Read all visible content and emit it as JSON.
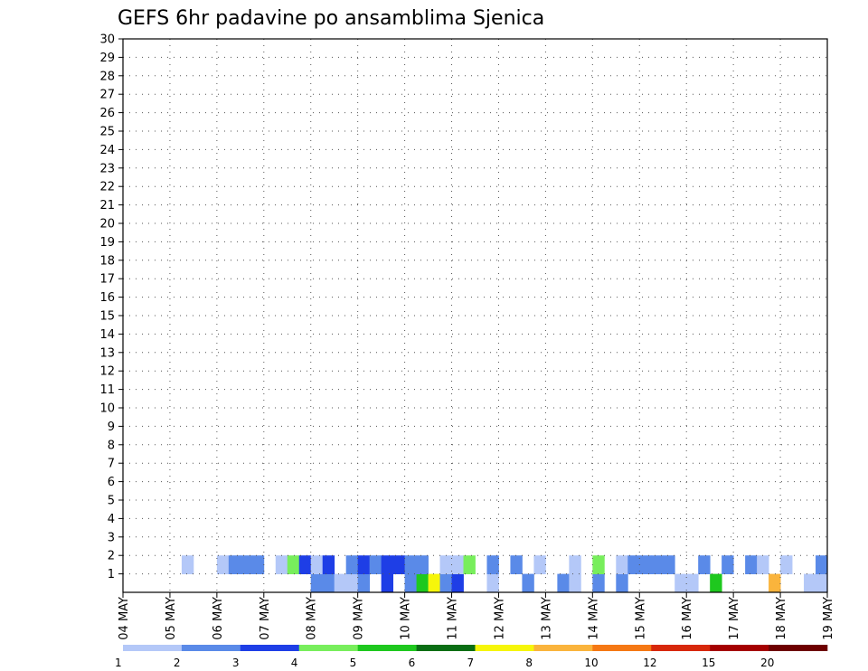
{
  "chart_data": {
    "type": "heatmap",
    "title": "GEFS 6hr padavine po ansamblima Sjenica",
    "xlabel": "",
    "ylabel": "",
    "x_ticks": [
      "04 MAY",
      "05 MAY",
      "06 MAY",
      "07 MAY",
      "08 MAY",
      "09 MAY",
      "10 MAY",
      "11 MAY",
      "12 MAY",
      "13 MAY",
      "14 MAY",
      "15 MAY",
      "16 MAY",
      "17 MAY",
      "18 MAY",
      "19 MAY"
    ],
    "y_ticks": [
      1,
      2,
      3,
      4,
      5,
      6,
      7,
      8,
      9,
      10,
      11,
      12,
      13,
      14,
      15,
      16,
      17,
      18,
      19,
      20,
      21,
      22,
      23,
      24,
      25,
      26,
      27,
      28,
      29,
      30
    ],
    "members": 30,
    "steps_per_day": 4,
    "xlim": [
      "04 MAY",
      "19 MAY"
    ],
    "ylim": [
      0,
      30
    ],
    "grid": true,
    "colorbar": {
      "labels": [
        "1",
        "2",
        "3",
        "4",
        "5",
        "6",
        "7",
        "8",
        "10",
        "12",
        "15",
        "20"
      ],
      "colors": [
        "#b4c8f8",
        "#5a8ae8",
        "#1e3ee6",
        "#78ee5c",
        "#1ec81e",
        "#0a6e14",
        "#f6f60a",
        "#fab43c",
        "#f57814",
        "#d7280a",
        "#a50000",
        "#6e0000"
      ]
    },
    "cells": [
      [
        1,
        16,
        2
      ],
      [
        1,
        17,
        2
      ],
      [
        1,
        18,
        1
      ],
      [
        1,
        19,
        1
      ],
      [
        1,
        20,
        2
      ],
      [
        1,
        22,
        3
      ],
      [
        1,
        24,
        2
      ],
      [
        1,
        25,
        5
      ],
      [
        1,
        26,
        7
      ],
      [
        1,
        27,
        2
      ],
      [
        1,
        28,
        3
      ],
      [
        1,
        31,
        1
      ],
      [
        1,
        34,
        2
      ],
      [
        1,
        37,
        2
      ],
      [
        1,
        38,
        1
      ],
      [
        1,
        40,
        2
      ],
      [
        1,
        42,
        2
      ],
      [
        1,
        47,
        1
      ],
      [
        1,
        48,
        1
      ],
      [
        1,
        50,
        5
      ],
      [
        1,
        55,
        8
      ],
      [
        1,
        58,
        1
      ],
      [
        1,
        59,
        1
      ],
      [
        1,
        60,
        2
      ],
      [
        1,
        62,
        3
      ],
      [
        1,
        64,
        5
      ],
      [
        1,
        65,
        2
      ],
      [
        1,
        67,
        6
      ],
      [
        1,
        68,
        2
      ],
      [
        1,
        69,
        2
      ],
      [
        1,
        70,
        1
      ],
      [
        1,
        72,
        1
      ],
      [
        1,
        73,
        3
      ],
      [
        1,
        74,
        3
      ],
      [
        1,
        75,
        2
      ],
      [
        1,
        77,
        1
      ],
      [
        1,
        78,
        1
      ],
      [
        1,
        80,
        1
      ],
      [
        1,
        81,
        2
      ],
      [
        1,
        83,
        1
      ],
      [
        1,
        86,
        5
      ],
      [
        1,
        87,
        1
      ],
      [
        1,
        88,
        1
      ],
      [
        1,
        89,
        3
      ],
      [
        1,
        90,
        1
      ],
      [
        1,
        92,
        2
      ],
      [
        1,
        93,
        4
      ],
      [
        1,
        94,
        3
      ],
      [
        1,
        97,
        1
      ],
      [
        1,
        98,
        1
      ],
      [
        1,
        101,
        1
      ],
      [
        1,
        104,
        2
      ],
      [
        1,
        107,
        1
      ],
      [
        1,
        109,
        3
      ],
      [
        1,
        111,
        1
      ],
      [
        1,
        112,
        1
      ],
      [
        1,
        114,
        2
      ],
      [
        1,
        115,
        3
      ],
      [
        1,
        119,
        2
      ],
      [
        1,
        120,
        3
      ],
      [
        1,
        122,
        2
      ],
      [
        1,
        123,
        2
      ],
      [
        1,
        125,
        3
      ],
      [
        1,
        126,
        1
      ],
      [
        1,
        127,
        6
      ],
      [
        1,
        129,
        2
      ],
      [
        1,
        130,
        2
      ],
      [
        1,
        134,
        1
      ],
      [
        1,
        136,
        2
      ],
      [
        1,
        138,
        2
      ],
      [
        1,
        142,
        2
      ],
      [
        1,
        144,
        3
      ],
      [
        1,
        147,
        3
      ],
      [
        1,
        148,
        2
      ],
      [
        1,
        149,
        2
      ],
      [
        1,
        150,
        3
      ],
      [
        1,
        151,
        2
      ],
      [
        1,
        153,
        2
      ],
      [
        1,
        154,
        1
      ],
      [
        1,
        156,
        1
      ],
      [
        1,
        157,
        2
      ],
      [
        1,
        158,
        3
      ],
      [
        1,
        159,
        3
      ],
      [
        1,
        160,
        3
      ],
      [
        1,
        162,
        1
      ],
      [
        1,
        165,
        3
      ],
      [
        1,
        167,
        2
      ],
      [
        1,
        169,
        1
      ],
      [
        1,
        170,
        2
      ],
      [
        1,
        173,
        2
      ],
      [
        1,
        175,
        2
      ],
      [
        1,
        176,
        1
      ],
      [
        1,
        179,
        1
      ],
      [
        1,
        180,
        1
      ],
      [
        1,
        181,
        2
      ],
      [
        1,
        182,
        1
      ],
      [
        1,
        183,
        1
      ],
      [
        1,
        186,
        4
      ],
      [
        2,
        5,
        1
      ],
      [
        2,
        8,
        1
      ],
      [
        2,
        9,
        2
      ],
      [
        2,
        10,
        2
      ],
      [
        2,
        11,
        2
      ],
      [
        2,
        13,
        1
      ],
      [
        2,
        14,
        4
      ],
      [
        2,
        15,
        3
      ],
      [
        2,
        16,
        1
      ],
      [
        2,
        17,
        3
      ],
      [
        2,
        19,
        2
      ],
      [
        2,
        20,
        3
      ],
      [
        2,
        21,
        2
      ],
      [
        2,
        22,
        3
      ],
      [
        2,
        23,
        3
      ],
      [
        2,
        24,
        2
      ],
      [
        2,
        25,
        2
      ],
      [
        2,
        27,
        1
      ],
      [
        2,
        28,
        1
      ],
      [
        2,
        29,
        4
      ],
      [
        2,
        31,
        2
      ],
      [
        2,
        33,
        2
      ],
      [
        2,
        35,
        1
      ],
      [
        2,
        38,
        1
      ],
      [
        2,
        40,
        4
      ],
      [
        2,
        42,
        1
      ],
      [
        2,
        43,
        2
      ],
      [
        2,
        44,
        2
      ],
      [
        2,
        45,
        2
      ],
      [
        2,
        46,
        2
      ],
      [
        2,
        49,
        2
      ],
      [
        2,
        51,
        2
      ],
      [
        2,
        53,
        2
      ],
      [
        2,
        54,
        1
      ],
      [
        2,
        56,
        1
      ],
      [
        2,
        59,
        2
      ],
      [
        2,
        61,
        1
      ],
      [
        2,
        64,
        2
      ],
      [
        2,
        66,
        4
      ],
      [
        2,
        67,
        2
      ],
      [
        2,
        68,
        2
      ],
      [
        2,
        70,
        2
      ],
      [
        2,
        72,
        1
      ],
      [
        2,
        73,
        2
      ],
      [
        2,
        75,
        1
      ],
      [
        2,
        76,
        1
      ],
      [
        2,
        77,
        1
      ],
      [
        2,
        78,
        2
      ],
      [
        2,
        79,
        2
      ],
      [
        2,
        80,
        2
      ],
      [
        2,
        81,
        2
      ],
      [
        2,
        82,
        1
      ],
      [
        2,
        84,
        1
      ],
      [
        2,
        87,
        2
      ],
      [
        2,
        88,
        1
      ],
      [
        2,
        91,
        3
      ],
      [
        2,
        92,
        2
      ],
      [
        2,
        93,
        3
      ],
      [
        2,
        94,
        2
      ],
      [
        2,
        96,
        1
      ],
      [
        2,
        98,
        2
      ],
      [
        2,
        99,
        1
      ],
      [
        2,
        101,
        1
      ],
      [
        2,
        102,
        2
      ],
      [
        2,
        104,
        1
      ],
      [
        2,
        105,
        2
      ],
      [
        2,
        106,
        2
      ],
      [
        2,
        109,
        2
      ],
      [
        2,
        110,
        2
      ],
      [
        2,
        112,
        2
      ],
      [
        2,
        113,
        2
      ],
      [
        2,
        115,
        3
      ],
      [
        2,
        116,
        2
      ],
      [
        2,
        117,
        2
      ],
      [
        2,
        118,
        2
      ],
      [
        2,
        121,
        2
      ],
      [
        2,
        123,
        2
      ],
      [
        2,
        125,
        2
      ],
      [
        2,
        126,
        2
      ],
      [
        2,
        128,
        1
      ],
      [
        2,
        131,
        2
      ],
      [
        2,
        133,
        2
      ],
      [
        2,
        134,
        3
      ],
      [
        2,
        136,
        2
      ],
      [
        2,
        137,
        2
      ],
      [
        2,
        138,
        2
      ],
      [
        2,
        139,
        2
      ],
      [
        2,
        142,
        2
      ],
      [
        2,
        144,
        1
      ],
      [
        2,
        145,
        3
      ],
      [
        2,
        146,
        3
      ],
      [
        2,
        147,
        3
      ],
      [
        2,
        148,
        1
      ],
      [
        2,
        149,
        2
      ],
      [
        2,
        151,
        2
      ],
      [
        2,
        152,
        3
      ],
      [
        2,
        153,
        3
      ],
      [
        2,
        156,
        2
      ],
      [
        2,
        158,
        1
      ],
      [
        2,
        159,
        3
      ],
      [
        2,
        160,
        1
      ],
      [
        2,
        161,
        2
      ],
      [
        2,
        162,
        3
      ],
      [
        2,
        163,
        2
      ],
      [
        2,
        166,
        3
      ],
      [
        2,
        167,
        2
      ],
      [
        2,
        168,
        2
      ],
      [
        2,
        169,
        3
      ],
      [
        2,
        170,
        2
      ],
      [
        2,
        172,
        1
      ],
      [
        2,
        174,
        1
      ],
      [
        2,
        176,
        2
      ],
      [
        2,
        177,
        2
      ],
      [
        2,
        178,
        3
      ],
      [
        2,
        179,
        2
      ],
      [
        2,
        180,
        3
      ],
      [
        2,
        181,
        3
      ],
      [
        2,
        182,
        1
      ],
      [
        2,
        183,
        3
      ],
      [
        2,
        184,
        2
      ],
      [
        2,
        185,
        3
      ],
      [
        2,
        186,
        1
      ]
    ]
  }
}
